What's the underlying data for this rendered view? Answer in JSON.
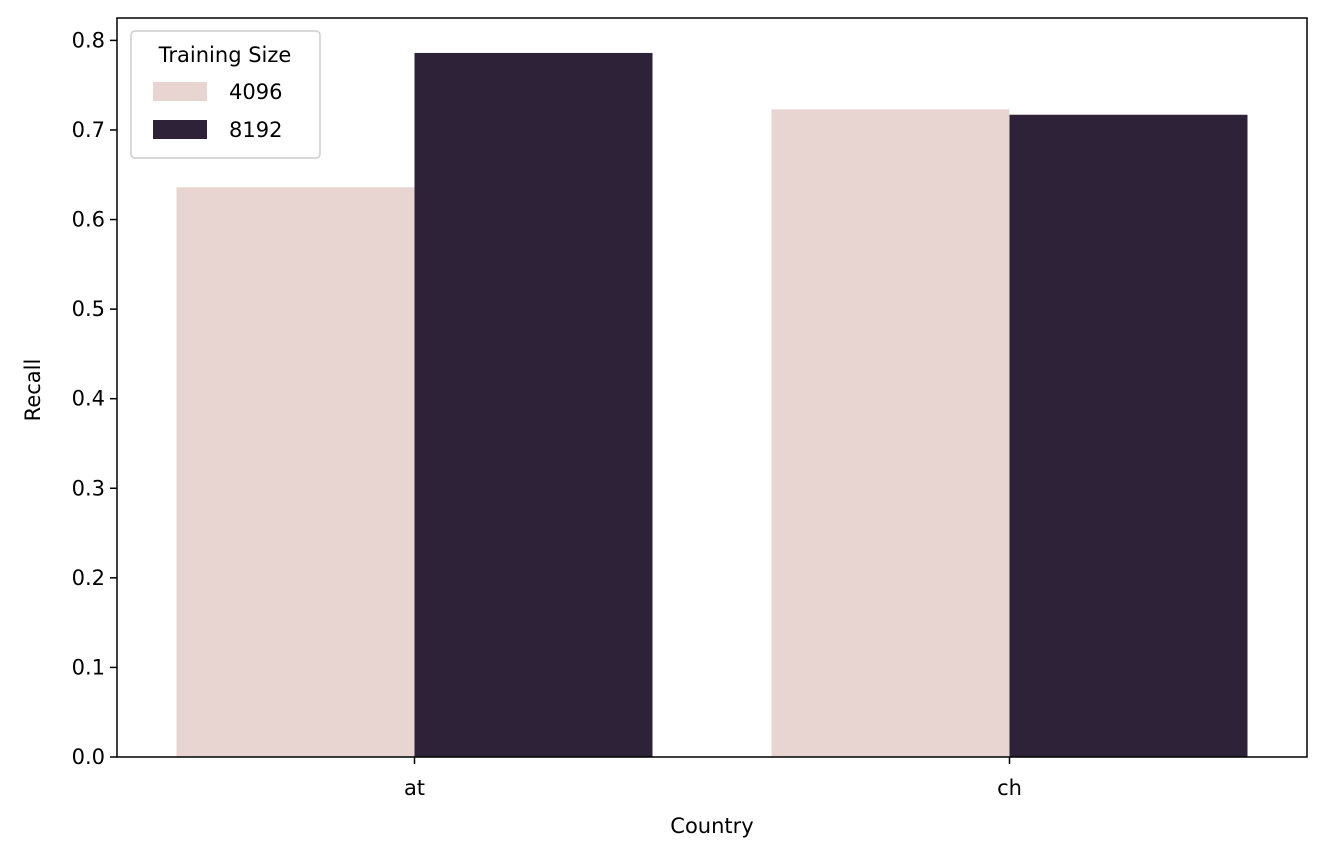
{
  "chart_data": {
    "type": "bar",
    "categories": [
      "at",
      "ch"
    ],
    "series": [
      {
        "name": "4096",
        "values": [
          0.636,
          0.723
        ],
        "color": "#e8d5d1"
      },
      {
        "name": "8192",
        "values": [
          0.786,
          0.717
        ],
        "color": "#2e2239"
      }
    ],
    "xlabel": "Country",
    "ylabel": "Recall",
    "ylim": [
      0,
      0.825
    ],
    "yticks": [
      0.0,
      0.1,
      0.2,
      0.3,
      0.4,
      0.5,
      0.6,
      0.7,
      0.8
    ],
    "ytick_labels": [
      "0.0",
      "0.1",
      "0.2",
      "0.3",
      "0.4",
      "0.5",
      "0.6",
      "0.7",
      "0.8"
    ],
    "legend": {
      "title": "Training Size",
      "placement": "top-left"
    },
    "grid": false
  }
}
